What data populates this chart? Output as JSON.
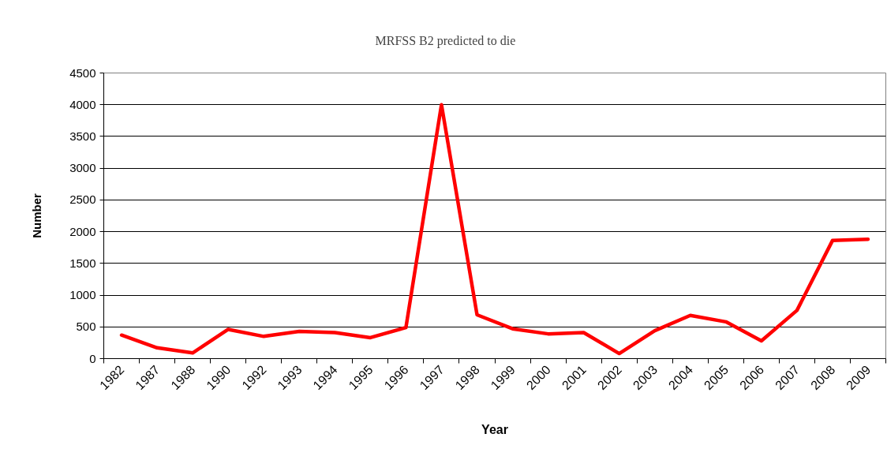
{
  "chart_data": {
    "type": "line",
    "title": "MRFSS B2 predicted to die",
    "xlabel": "Year",
    "ylabel": "Number",
    "categories": [
      "1982",
      "1987",
      "1988",
      "1990",
      "1992",
      "1993",
      "1994",
      "1995",
      "1996",
      "1997",
      "1998",
      "1999",
      "2000",
      "2001",
      "2002",
      "2003",
      "2004",
      "2005",
      "2006",
      "2007",
      "2008",
      "2009"
    ],
    "series": [
      {
        "color": "#ff0000",
        "values": [
          370,
          170,
          90,
          460,
          350,
          430,
          410,
          330,
          490,
          4000,
          690,
          470,
          390,
          410,
          80,
          440,
          680,
          580,
          280,
          760,
          1860,
          1880
        ]
      }
    ],
    "ylim": [
      0,
      4500
    ],
    "yticks": [
      0,
      500,
      1000,
      1500,
      2000,
      2500,
      3000,
      3500,
      4000,
      4500
    ],
    "grid": "y",
    "line_style": "solid"
  }
}
